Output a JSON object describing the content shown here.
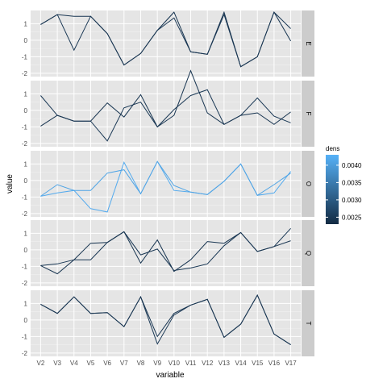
{
  "chart_data": {
    "type": "line",
    "facet_by": "row",
    "xlabel": "variable",
    "ylabel": "value",
    "categories": [
      "V2",
      "V3",
      "V4",
      "V5",
      "V6",
      "V7",
      "V8",
      "V9",
      "V10",
      "V11",
      "V12",
      "V13",
      "V14",
      "V15",
      "V16",
      "V17"
    ],
    "ylim": [
      -2.2,
      1.8
    ],
    "yticks": [
      -2,
      -1,
      0,
      1
    ],
    "legend": {
      "title": "dens",
      "position": "right",
      "ticks": [
        0.0025,
        0.003,
        0.0035,
        0.004
      ],
      "tick_labels": [
        "0.0025",
        "0.0030",
        "0.0035",
        "0.0040"
      ],
      "range": [
        0.0023,
        0.0043
      ],
      "low_color": "#132b43",
      "high_color": "#56b1f7"
    },
    "panels": [
      {
        "label": "E",
        "series": [
          {
            "dens": 0.0025,
            "values": [
              0.95,
              1.55,
              -0.6,
              1.45,
              0.4,
              -1.5,
              -0.8,
              0.6,
              1.35,
              -0.7,
              -0.85,
              1.55,
              -1.6,
              -1.0,
              1.7,
              0.7
            ]
          },
          {
            "dens": 0.00245,
            "values": [
              0.95,
              1.55,
              1.45,
              1.45,
              0.4,
              -1.5,
              -0.8,
              0.6,
              1.7,
              -0.7,
              -0.85,
              1.7,
              -1.6,
              -1.0,
              1.7,
              -0.05
            ]
          }
        ]
      },
      {
        "label": "F",
        "series": [
          {
            "dens": 0.0025,
            "values": [
              0.9,
              -0.3,
              -0.65,
              -0.65,
              -1.85,
              0.15,
              0.5,
              -1.0,
              0.05,
              0.9,
              1.25,
              -0.85,
              -0.3,
              0.75,
              -0.35,
              -0.75
            ]
          },
          {
            "dens": 0.00245,
            "values": [
              -0.95,
              -0.3,
              -0.65,
              -0.65,
              0.45,
              -0.4,
              0.95,
              -1.0,
              -0.3,
              2.4,
              -0.15,
              -0.85,
              -0.3,
              -0.15,
              -0.85,
              -0.1
            ]
          }
        ]
      },
      {
        "label": "O",
        "series": [
          {
            "dens": 0.0042,
            "values": [
              -0.95,
              -0.75,
              -0.6,
              -1.7,
              -1.9,
              1.1,
              -0.8,
              1.15,
              -0.6,
              -0.7,
              -0.85,
              -0.05,
              1.0,
              -0.9,
              -0.75,
              0.55
            ]
          },
          {
            "dens": 0.0041,
            "values": [
              -0.95,
              -0.25,
              -0.6,
              -0.6,
              0.45,
              0.65,
              -0.8,
              1.15,
              -0.3,
              -0.7,
              -0.85,
              -0.05,
              1.0,
              -0.9,
              -0.25,
              0.45
            ]
          }
        ]
      },
      {
        "label": "Q",
        "series": [
          {
            "dens": 0.0025,
            "values": [
              -0.95,
              -0.85,
              -0.6,
              -0.6,
              0.45,
              1.1,
              -0.3,
              0.05,
              -1.25,
              -1.1,
              -0.85,
              0.25,
              1.05,
              -0.1,
              0.2,
              1.3
            ]
          },
          {
            "dens": 0.00245,
            "values": [
              -0.95,
              -1.45,
              -0.6,
              0.4,
              0.45,
              1.1,
              -0.8,
              0.6,
              -1.3,
              -0.6,
              0.5,
              0.4,
              1.05,
              -0.1,
              0.2,
              0.55
            ]
          }
        ]
      },
      {
        "label": "T",
        "series": [
          {
            "dens": 0.0025,
            "values": [
              0.95,
              0.4,
              1.4,
              0.4,
              0.45,
              -0.4,
              1.4,
              -1.45,
              0.3,
              0.9,
              1.25,
              -1.05,
              -0.25,
              1.5,
              -0.85,
              -1.5
            ]
          },
          {
            "dens": 0.00245,
            "values": [
              0.95,
              0.4,
              1.4,
              0.4,
              0.45,
              -0.4,
              1.4,
              -1.0,
              0.4,
              0.9,
              1.25,
              -1.05,
              -0.25,
              1.5,
              -0.85,
              -1.5
            ]
          }
        ]
      }
    ]
  }
}
